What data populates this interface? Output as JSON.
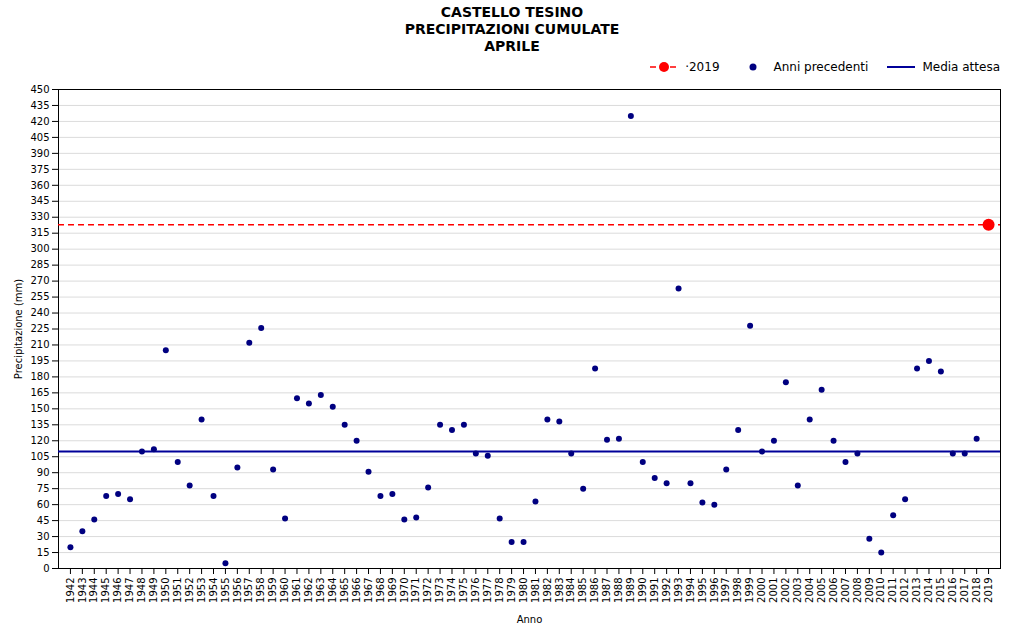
{
  "chart_data": {
    "type": "scatter",
    "title": "CASTELLO TESINO\nPRECIPITAZIONI CUMULATE\nAPRILE",
    "x_label": "Anno",
    "y_label": "Precipitazione (mm)",
    "xlim": [
      1941,
      2020
    ],
    "xticks": [
      1942,
      1943,
      1944,
      1945,
      1946,
      1947,
      1948,
      1949,
      1950,
      1951,
      1952,
      1953,
      1954,
      1955,
      1956,
      1957,
      1958,
      1959,
      1960,
      1961,
      1962,
      1963,
      1964,
      1965,
      1966,
      1967,
      1968,
      1969,
      1970,
      1971,
      1972,
      1973,
      1974,
      1975,
      1976,
      1977,
      1978,
      1979,
      1980,
      1981,
      1982,
      1983,
      1984,
      1985,
      1986,
      1987,
      1988,
      1989,
      1990,
      1991,
      1992,
      1993,
      1994,
      1995,
      1996,
      1997,
      1998,
      1999,
      2000,
      2001,
      2002,
      2003,
      2004,
      2005,
      2006,
      2007,
      2008,
      2009,
      2010,
      2011,
      2012,
      2013,
      2014,
      2015,
      2016,
      2017,
      2018,
      2019
    ],
    "ylim": [
      0,
      450
    ],
    "yticks": [
      0,
      15,
      30,
      45,
      60,
      75,
      90,
      105,
      120,
      135,
      150,
      165,
      180,
      195,
      210,
      225,
      240,
      255,
      270,
      285,
      300,
      315,
      330,
      345,
      360,
      375,
      390,
      405,
      420,
      435,
      450
    ],
    "grid": true,
    "legend": "upper right",
    "series": [
      {
        "name": "·2019",
        "type": "scatter",
        "color": "red",
        "marker": "circle",
        "line_style": "dashed",
        "x": [
          2019
        ],
        "values": [
          323
        ]
      },
      {
        "name": "Anni precedenti",
        "type": "scatter",
        "color": "#000080",
        "marker": "circle",
        "x": [
          1942,
          1943,
          1944,
          1945,
          1946,
          1947,
          1948,
          1949,
          1950,
          1951,
          1952,
          1953,
          1954,
          1955,
          1956,
          1957,
          1958,
          1959,
          1960,
          1961,
          1962,
          1963,
          1964,
          1965,
          1966,
          1967,
          1968,
          1969,
          1970,
          1971,
          1972,
          1973,
          1974,
          1975,
          1976,
          1977,
          1978,
          1979,
          1980,
          1981,
          1982,
          1983,
          1984,
          1985,
          1986,
          1987,
          1988,
          1989,
          1990,
          1991,
          1992,
          1993,
          1994,
          1995,
          1996,
          1997,
          1998,
          1999,
          2000,
          2001,
          2002,
          2003,
          2004,
          2005,
          2006,
          2007,
          2008,
          2009,
          2010,
          2011,
          2012,
          2013,
          2014,
          2015,
          2016,
          2017,
          2018
        ],
        "values": [
          20,
          35,
          46,
          68,
          70,
          65,
          110,
          112,
          205,
          100,
          78,
          140,
          68,
          5,
          95,
          212,
          226,
          93,
          47,
          160,
          155,
          163,
          152,
          135,
          120,
          91,
          68,
          70,
          46,
          48,
          76,
          135,
          130,
          135,
          108,
          106,
          47,
          25,
          25,
          63,
          140,
          138,
          108,
          75,
          188,
          121,
          122,
          425,
          100,
          85,
          80,
          263,
          80,
          62,
          60,
          93,
          130,
          228,
          110,
          120,
          175,
          78,
          140,
          168,
          120,
          100,
          108,
          28,
          15,
          50,
          65,
          188,
          195,
          185,
          108,
          108,
          122
        ]
      },
      {
        "name": "Media attesa",
        "type": "hline",
        "color": "#000099",
        "line_style": "solid",
        "values": [
          110
        ]
      }
    ]
  }
}
